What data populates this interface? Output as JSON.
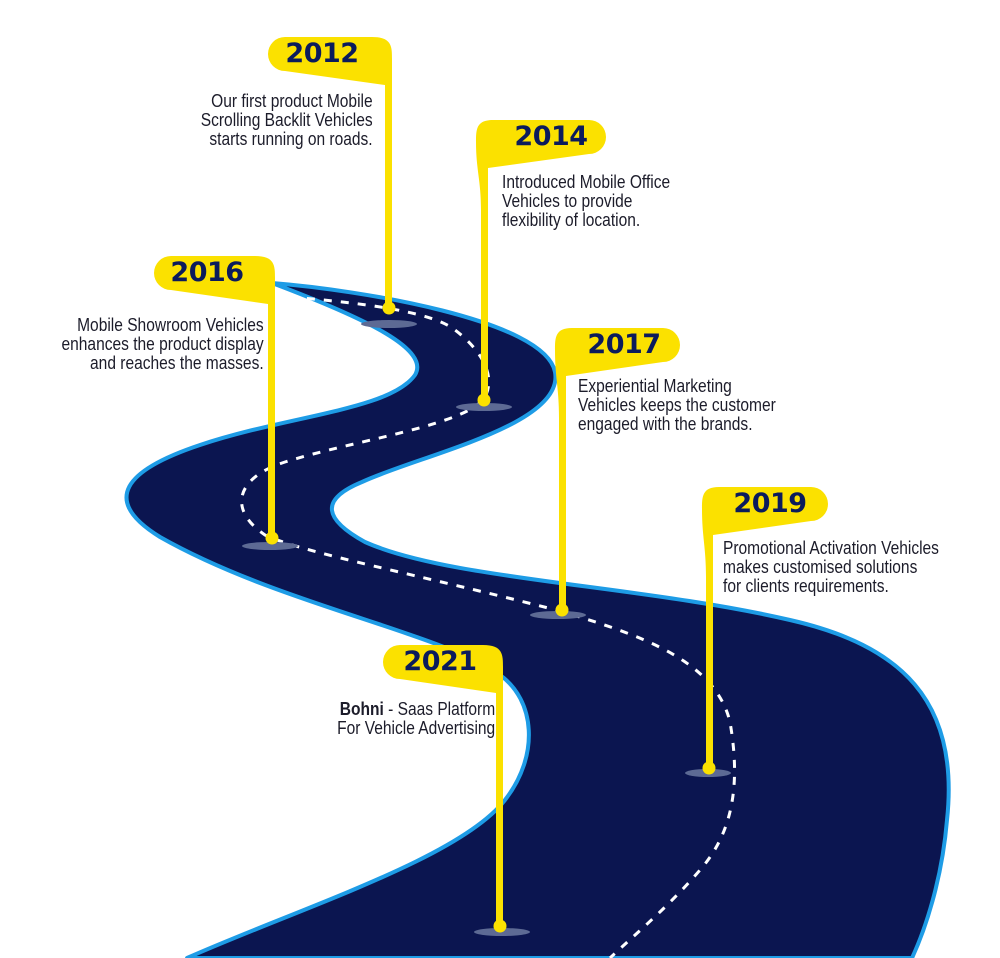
{
  "colors": {
    "road": "#0b1550",
    "road_edge": "#1e9ce6",
    "marker": "#fbe100",
    "year_text": "#0b1b5c",
    "body_text": "#1c1c2a",
    "shadow": "#5d6a94"
  },
  "milestones": [
    {
      "year": "2012",
      "lines": [
        "Our first product Mobile",
        "Scrolling Backlit Vehicles",
        "starts running on roads."
      ]
    },
    {
      "year": "2014",
      "lines": [
        "Introduced Mobile Office",
        "Vehicles to provide",
        "flexibility of location."
      ]
    },
    {
      "year": "2016",
      "lines": [
        "Mobile Showroom Vehicles",
        "enhances the product display",
        "and reaches the masses."
      ]
    },
    {
      "year": "2017",
      "lines": [
        "Experiential Marketing",
        "Vehicles keeps the customer",
        "engaged with the brands."
      ]
    },
    {
      "year": "2019",
      "lines": [
        "Promotional Activation Vehicles",
        "makes customised solutions",
        "for clients requirements."
      ]
    },
    {
      "year": "2021",
      "bold": "Bohni",
      "sep": " -  Saas Platform",
      "lines": [
        "For Vehicle Advertising"
      ]
    }
  ]
}
